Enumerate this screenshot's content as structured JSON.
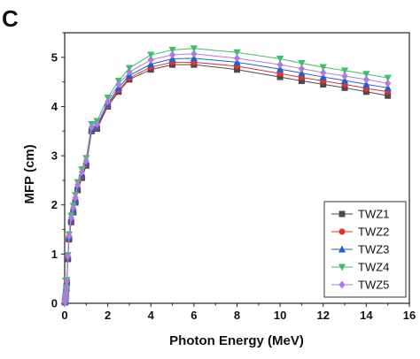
{
  "panel_label": "C",
  "chart_data": {
    "type": "line",
    "title": "",
    "xlabel": "Photon Energy (MeV)",
    "ylabel": "MFP (cm)",
    "xlim": [
      0,
      16
    ],
    "ylim": [
      0,
      5.5
    ],
    "xticks": [
      0,
      2,
      4,
      6,
      8,
      10,
      12,
      14,
      16
    ],
    "yticks": [
      0,
      1,
      2,
      3,
      4,
      5
    ],
    "grid": false,
    "legend_position": "bottom-right",
    "x": [
      0.015,
      0.02,
      0.03,
      0.04,
      0.05,
      0.06,
      0.08,
      0.1,
      0.15,
      0.2,
      0.3,
      0.4,
      0.5,
      0.6,
      0.8,
      1,
      1.25,
      1.5,
      2,
      2.5,
      3,
      4,
      5,
      6,
      8,
      10,
      11,
      12,
      13,
      14,
      15
    ],
    "series": [
      {
        "name": "TWZ1",
        "color": "#4a4a4a",
        "marker": "square",
        "values": [
          0.02,
          0.04,
          0.08,
          0.12,
          0.16,
          0.2,
          0.3,
          0.42,
          0.9,
          1.3,
          1.65,
          1.85,
          2.05,
          2.3,
          2.55,
          2.8,
          3.5,
          3.55,
          4.0,
          4.3,
          4.55,
          4.75,
          4.85,
          4.85,
          4.75,
          4.6,
          4.52,
          4.45,
          4.38,
          4.3,
          4.22
        ]
      },
      {
        "name": "TWZ2",
        "color": "#e8302a",
        "marker": "circle",
        "values": [
          0.02,
          0.04,
          0.08,
          0.12,
          0.16,
          0.2,
          0.3,
          0.43,
          0.92,
          1.32,
          1.67,
          1.88,
          2.08,
          2.33,
          2.58,
          2.83,
          3.52,
          3.57,
          4.02,
          4.33,
          4.58,
          4.8,
          4.9,
          4.9,
          4.82,
          4.67,
          4.59,
          4.52,
          4.45,
          4.37,
          4.3
        ]
      },
      {
        "name": "TWZ3",
        "color": "#1f5fcf",
        "marker": "triangle-up",
        "values": [
          0.02,
          0.04,
          0.08,
          0.12,
          0.16,
          0.21,
          0.31,
          0.44,
          0.94,
          1.34,
          1.7,
          1.9,
          2.1,
          2.36,
          2.62,
          2.86,
          3.54,
          3.6,
          4.05,
          4.38,
          4.63,
          4.86,
          4.97,
          4.98,
          4.9,
          4.76,
          4.68,
          4.6,
          4.53,
          4.45,
          4.38
        ]
      },
      {
        "name": "TWZ4",
        "color": "#3fbf6a",
        "marker": "triangle-down",
        "values": [
          0.02,
          0.04,
          0.08,
          0.12,
          0.17,
          0.22,
          0.33,
          0.47,
          0.98,
          1.4,
          1.78,
          1.98,
          2.2,
          2.46,
          2.72,
          2.95,
          3.64,
          3.7,
          4.18,
          4.52,
          4.78,
          5.05,
          5.15,
          5.18,
          5.1,
          4.97,
          4.88,
          4.8,
          4.73,
          4.66,
          4.58
        ]
      },
      {
        "name": "TWZ5",
        "color": "#b07be0",
        "marker": "diamond",
        "values": [
          0.02,
          0.04,
          0.08,
          0.12,
          0.16,
          0.21,
          0.32,
          0.45,
          0.96,
          1.37,
          1.74,
          1.94,
          2.15,
          2.41,
          2.67,
          2.9,
          3.58,
          3.64,
          4.1,
          4.45,
          4.7,
          4.95,
          5.05,
          5.07,
          4.98,
          4.85,
          4.77,
          4.69,
          4.62,
          4.55,
          4.47
        ]
      }
    ]
  }
}
